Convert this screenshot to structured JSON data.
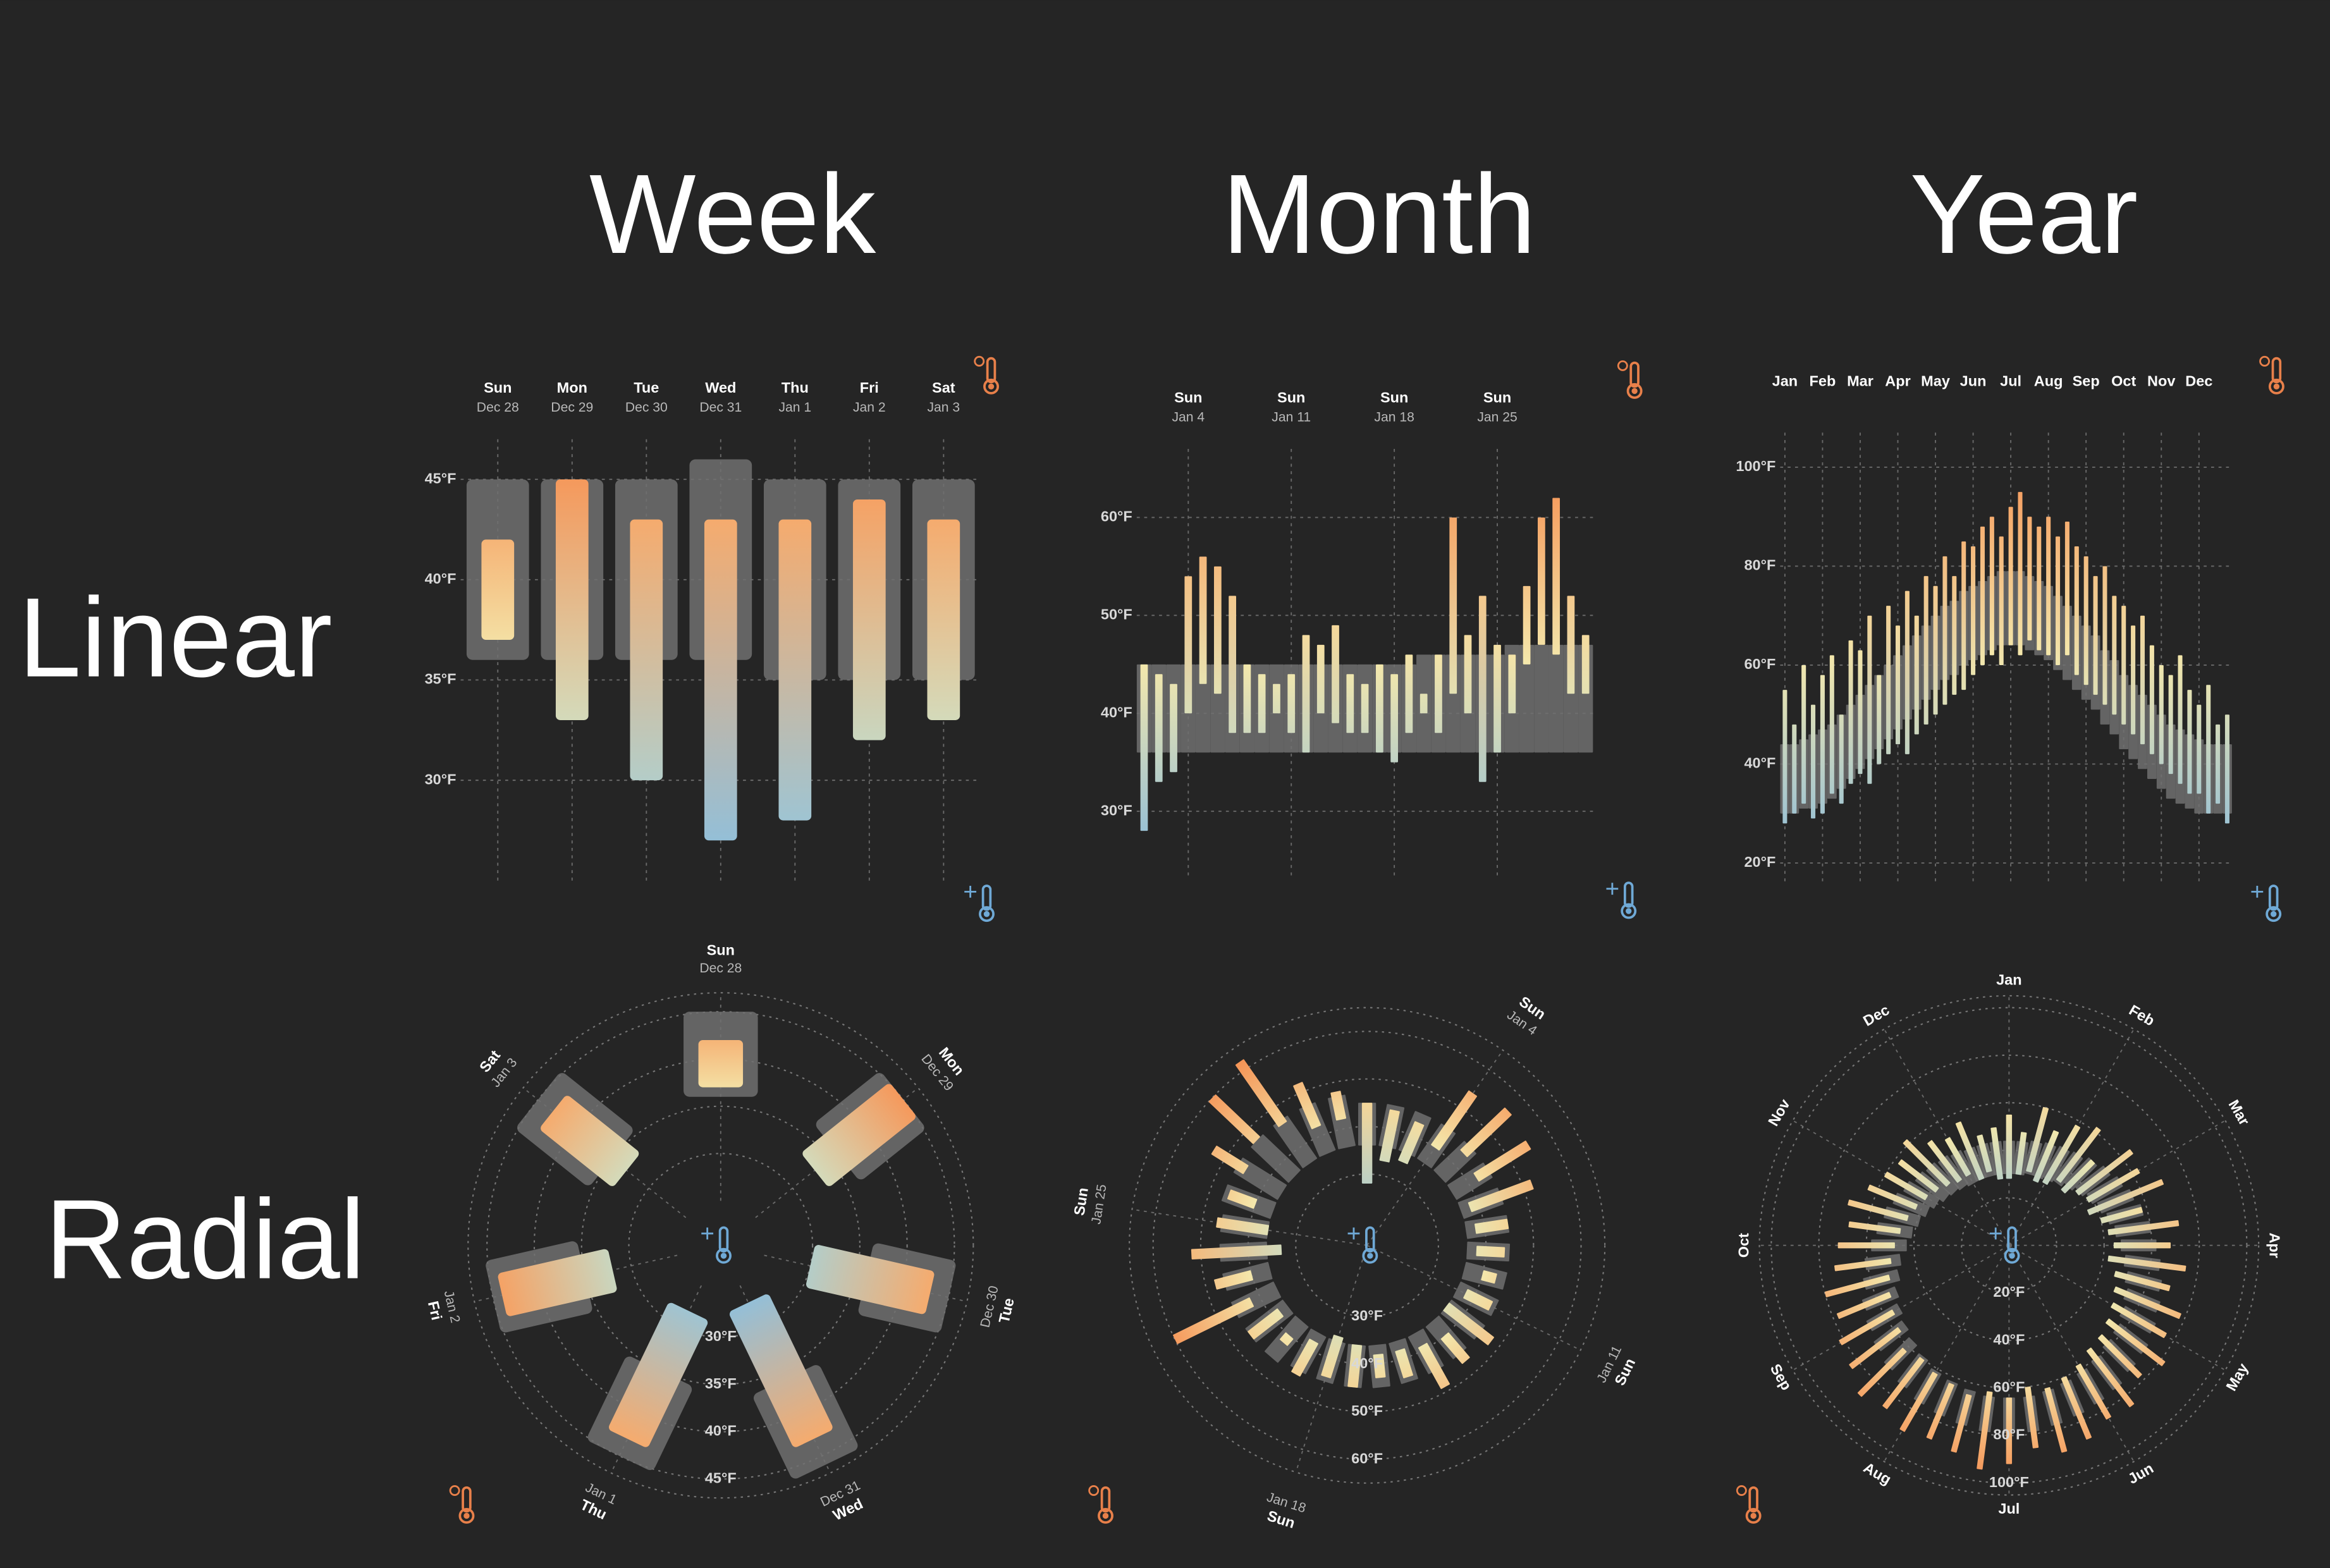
{
  "column_titles": [
    "Week",
    "Month",
    "Year"
  ],
  "row_titles": [
    "Linear",
    "Radial"
  ],
  "chart_data": [
    {
      "type": "linear-range",
      "categories": [
        "Sun",
        "Mon",
        "Tue",
        "Wed",
        "Thu",
        "Fri",
        "Sat"
      ],
      "dates": [
        "Dec 28",
        "Dec 29",
        "Dec 30",
        "Dec 31",
        "Jan 1",
        "Jan 2",
        "Jan 3"
      ],
      "normal_high": [
        45,
        45,
        45,
        46,
        45,
        45,
        45
      ],
      "normal_low": [
        36,
        36,
        36,
        36,
        35,
        35,
        35
      ],
      "high": [
        42,
        45,
        43,
        43,
        43,
        44,
        43
      ],
      "low": [
        37,
        33,
        30,
        27,
        28,
        32,
        33
      ],
      "ylim": [
        25,
        47
      ],
      "yticks": [
        {
          "value": 30,
          "label": "30°F"
        },
        {
          "value": 35,
          "label": "35°F"
        },
        {
          "value": 40,
          "label": "40°F"
        },
        {
          "value": 45,
          "label": "45°F"
        }
      ],
      "grid": true,
      "color_scale": [
        "#7fb6e0",
        "#f4e8ac",
        "#f5884a"
      ],
      "normal_color": "#707070"
    },
    {
      "type": "linear-range",
      "categories": [
        null,
        null,
        null,
        "Sun",
        null,
        null,
        null,
        null,
        null,
        null,
        "Sun",
        null,
        null,
        null,
        null,
        null,
        null,
        "Sun",
        null,
        null,
        null,
        null,
        null,
        null,
        "Sun",
        null,
        null,
        null,
        null,
        null,
        null
      ],
      "dates": [
        null,
        null,
        null,
        "Jan 4",
        null,
        null,
        null,
        null,
        null,
        null,
        "Jan 11",
        null,
        null,
        null,
        null,
        null,
        null,
        "Jan 18",
        null,
        null,
        null,
        null,
        null,
        null,
        "Jan 25",
        null,
        null,
        null,
        null,
        null,
        null
      ],
      "normal_high": [
        45,
        45,
        45,
        45,
        45,
        45,
        45,
        45,
        45,
        45,
        45,
        45,
        45,
        45,
        45,
        45,
        45,
        45,
        45,
        46,
        46,
        46,
        46,
        46,
        46,
        47,
        47,
        47,
        47,
        47,
        47
      ],
      "normal_low": [
        36,
        36,
        36,
        36,
        36,
        36,
        36,
        36,
        36,
        36,
        36,
        36,
        36,
        36,
        36,
        36,
        36,
        36,
        36,
        36,
        36,
        36,
        36,
        36,
        36,
        36,
        36,
        36,
        36,
        36,
        36
      ],
      "high": [
        45,
        44,
        43,
        54,
        56,
        55,
        52,
        45,
        44,
        43,
        44,
        48,
        47,
        49,
        44,
        43,
        45,
        44,
        46,
        42,
        46,
        60,
        48,
        52,
        47,
        46,
        53,
        60,
        62,
        52,
        48
      ],
      "low": [
        28,
        33,
        34,
        40,
        43,
        42,
        38,
        38,
        38,
        40,
        38,
        36,
        40,
        39,
        38,
        38,
        36,
        35,
        38,
        40,
        38,
        42,
        40,
        33,
        36,
        40,
        45,
        47,
        46,
        42,
        42
      ],
      "ylim": [
        23,
        67
      ],
      "yticks": [
        {
          "value": 30,
          "label": "30°F"
        },
        {
          "value": 40,
          "label": "40°F"
        },
        {
          "value": 50,
          "label": "50°F"
        },
        {
          "value": 60,
          "label": "60°F"
        }
      ],
      "grid": true,
      "color_scale": [
        "#7fb6e0",
        "#f4e8ac",
        "#f5884a"
      ],
      "normal_color": "#707070"
    },
    {
      "type": "linear-range",
      "categories": [
        "Jan",
        null,
        null,
        null,
        "Feb",
        null,
        null,
        null,
        "Mar",
        null,
        null,
        null,
        "Apr",
        null,
        null,
        null,
        "May",
        null,
        null,
        null,
        "Jun",
        null,
        null,
        null,
        "Jul",
        null,
        null,
        null,
        "Aug",
        null,
        null,
        null,
        "Sep",
        null,
        null,
        null,
        "Oct",
        null,
        null,
        null,
        "Nov",
        null,
        null,
        null,
        "Dec",
        null,
        null,
        null
      ],
      "normal_high": [
        44,
        44,
        45,
        46,
        47,
        48,
        50,
        52,
        54,
        56,
        58,
        60,
        62,
        64,
        66,
        68,
        70,
        72,
        73,
        75,
        76,
        77,
        78,
        79,
        79,
        79,
        78,
        77,
        76,
        74,
        72,
        70,
        68,
        66,
        63,
        61,
        58,
        56,
        54,
        52,
        50,
        48,
        47,
        46,
        45,
        44,
        44,
        44
      ],
      "normal_low": [
        30,
        30,
        31,
        31,
        32,
        33,
        35,
        37,
        39,
        41,
        43,
        45,
        47,
        49,
        51,
        53,
        55,
        57,
        58,
        60,
        61,
        62,
        63,
        64,
        64,
        64,
        63,
        62,
        61,
        59,
        57,
        55,
        53,
        51,
        48,
        46,
        43,
        41,
        39,
        37,
        35,
        33,
        32,
        31,
        30,
        30,
        30,
        30
      ],
      "high": [
        55,
        48,
        60,
        52,
        58,
        62,
        50,
        65,
        63,
        70,
        58,
        72,
        68,
        75,
        70,
        78,
        76,
        82,
        78,
        85,
        84,
        88,
        90,
        86,
        92,
        95,
        90,
        88,
        90,
        86,
        89,
        84,
        82,
        78,
        80,
        74,
        72,
        68,
        70,
        64,
        60,
        58,
        62,
        55,
        52,
        56,
        48,
        50
      ],
      "low": [
        28,
        30,
        32,
        29,
        30,
        34,
        32,
        36,
        38,
        36,
        40,
        42,
        44,
        42,
        46,
        48,
        50,
        52,
        54,
        55,
        58,
        60,
        62,
        60,
        64,
        62,
        65,
        63,
        62,
        60,
        62,
        58,
        56,
        54,
        52,
        50,
        48,
        46,
        44,
        42,
        40,
        38,
        36,
        34,
        34,
        30,
        32,
        28
      ],
      "ylim": [
        16,
        107
      ],
      "yticks": [
        {
          "value": 20,
          "label": "20°F"
        },
        {
          "value": 40,
          "label": "40°F"
        },
        {
          "value": 60,
          "label": "60°F"
        },
        {
          "value": 80,
          "label": "80°F"
        },
        {
          "value": 100,
          "label": "100°F"
        }
      ],
      "grid": true,
      "color_scale": [
        "#7fb6e0",
        "#f4e8ac",
        "#f5884a"
      ],
      "normal_color": "#707070"
    },
    {
      "type": "radial-range",
      "categories": [
        "Sun",
        "Mon",
        "Tue",
        "Wed",
        "Thu",
        "Fri",
        "Sat"
      ],
      "dates": [
        "Dec 28",
        "Dec 29",
        "Dec 30",
        "Dec 31",
        "Jan 1",
        "Jan 2",
        "Jan 3"
      ],
      "normal_high": [
        45,
        45,
        45,
        46,
        45,
        45,
        45
      ],
      "normal_low": [
        36,
        36,
        36,
        36,
        35,
        35,
        35
      ],
      "high": [
        42,
        45,
        43,
        43,
        43,
        44,
        43
      ],
      "low": [
        37,
        33,
        30,
        27,
        28,
        32,
        33
      ],
      "ylim": [
        25,
        47
      ],
      "yticks": [
        {
          "value": 30,
          "label": "30°F"
        },
        {
          "value": 35,
          "label": "35°F"
        },
        {
          "value": 40,
          "label": "40°F"
        },
        {
          "value": 45,
          "label": "45°F"
        }
      ],
      "grid": true,
      "color_scale": [
        "#7fb6e0",
        "#f4e8ac",
        "#f5884a"
      ],
      "normal_color": "#707070"
    },
    {
      "type": "radial-range",
      "categories": [
        null,
        null,
        null,
        "Sun",
        null,
        null,
        null,
        null,
        null,
        null,
        "Sun",
        null,
        null,
        null,
        null,
        null,
        null,
        "Sun",
        null,
        null,
        null,
        null,
        null,
        null,
        "Sun",
        null,
        null,
        null,
        null,
        null,
        null
      ],
      "dates": [
        null,
        null,
        null,
        "Jan 4",
        null,
        null,
        null,
        null,
        null,
        null,
        "Jan 11",
        null,
        null,
        null,
        null,
        null,
        null,
        "Jan 18",
        null,
        null,
        null,
        null,
        null,
        null,
        "Jan 25",
        null,
        null,
        null,
        null,
        null,
        null
      ],
      "normal_high": [
        45,
        45,
        45,
        45,
        45,
        45,
        45,
        45,
        45,
        45,
        45,
        45,
        45,
        45,
        45,
        45,
        45,
        45,
        45,
        46,
        46,
        46,
        46,
        46,
        46,
        47,
        47,
        47,
        47,
        47,
        47
      ],
      "normal_low": [
        36,
        36,
        36,
        36,
        36,
        36,
        36,
        36,
        36,
        36,
        36,
        36,
        36,
        36,
        36,
        36,
        36,
        36,
        36,
        36,
        36,
        36,
        36,
        36,
        36,
        36,
        36,
        36,
        36,
        36,
        36
      ],
      "high": [
        45,
        44,
        43,
        54,
        56,
        55,
        52,
        45,
        44,
        43,
        44,
        48,
        47,
        49,
        44,
        43,
        45,
        44,
        46,
        42,
        46,
        60,
        48,
        52,
        47,
        46,
        53,
        60,
        62,
        52,
        48
      ],
      "low": [
        28,
        33,
        34,
        40,
        43,
        42,
        38,
        38,
        38,
        40,
        38,
        36,
        40,
        39,
        38,
        38,
        36,
        35,
        38,
        40,
        38,
        42,
        40,
        33,
        36,
        40,
        45,
        47,
        46,
        42,
        42
      ],
      "ylim": [
        15,
        65
      ],
      "yticks": [
        {
          "value": 30,
          "label": "30°F"
        },
        {
          "value": 40,
          "label": "40°F"
        },
        {
          "value": 50,
          "label": "50°F"
        },
        {
          "value": 60,
          "label": "60°F"
        }
      ],
      "grid": true,
      "color_scale": [
        "#7fb6e0",
        "#f4e8ac",
        "#f5884a"
      ],
      "normal_color": "#707070"
    },
    {
      "type": "radial-range",
      "categories": [
        "Jan",
        null,
        null,
        null,
        "Feb",
        null,
        null,
        null,
        "Mar",
        null,
        null,
        null,
        "Apr",
        null,
        null,
        null,
        "May",
        null,
        null,
        null,
        "Jun",
        null,
        null,
        null,
        "Jul",
        null,
        null,
        null,
        "Aug",
        null,
        null,
        null,
        "Sep",
        null,
        null,
        null,
        "Oct",
        null,
        null,
        null,
        "Nov",
        null,
        null,
        null,
        "Dec",
        null,
        null,
        null
      ],
      "normal_high": [
        44,
        44,
        45,
        46,
        47,
        48,
        50,
        52,
        54,
        56,
        58,
        60,
        62,
        64,
        66,
        68,
        70,
        72,
        73,
        75,
        76,
        77,
        78,
        79,
        79,
        79,
        78,
        77,
        76,
        74,
        72,
        70,
        68,
        66,
        63,
        61,
        58,
        56,
        54,
        52,
        50,
        48,
        47,
        46,
        45,
        44,
        44,
        44
      ],
      "normal_low": [
        30,
        30,
        31,
        31,
        32,
        33,
        35,
        37,
        39,
        41,
        43,
        45,
        47,
        49,
        51,
        53,
        55,
        57,
        58,
        60,
        61,
        62,
        63,
        64,
        64,
        64,
        63,
        62,
        61,
        59,
        57,
        55,
        53,
        51,
        48,
        46,
        43,
        41,
        39,
        37,
        35,
        33,
        32,
        31,
        30,
        30,
        30,
        30
      ],
      "high": [
        55,
        48,
        60,
        52,
        58,
        62,
        50,
        65,
        63,
        70,
        58,
        72,
        68,
        75,
        70,
        78,
        76,
        82,
        78,
        85,
        84,
        88,
        90,
        86,
        92,
        95,
        90,
        88,
        90,
        86,
        89,
        84,
        82,
        78,
        80,
        74,
        72,
        68,
        70,
        64,
        60,
        58,
        62,
        55,
        52,
        56,
        48,
        50
      ],
      "low": [
        28,
        30,
        32,
        29,
        30,
        34,
        32,
        36,
        38,
        36,
        40,
        42,
        44,
        42,
        46,
        48,
        50,
        52,
        54,
        55,
        58,
        60,
        62,
        60,
        64,
        62,
        65,
        63,
        62,
        60,
        62,
        58,
        56,
        54,
        52,
        50,
        48,
        46,
        44,
        42,
        40,
        38,
        36,
        34,
        34,
        30,
        32,
        28
      ],
      "ylim": [
        0,
        105
      ],
      "yticks": [
        {
          "value": 20,
          "label": "20°F"
        },
        {
          "value": 40,
          "label": "40°F"
        },
        {
          "value": 60,
          "label": "60°F"
        },
        {
          "value": 80,
          "label": "80°F"
        },
        {
          "value": 100,
          "label": "100°F"
        }
      ],
      "grid": true,
      "color_scale": [
        "#7fb6e0",
        "#f4e8ac",
        "#f5884a"
      ],
      "normal_color": "#707070"
    }
  ]
}
